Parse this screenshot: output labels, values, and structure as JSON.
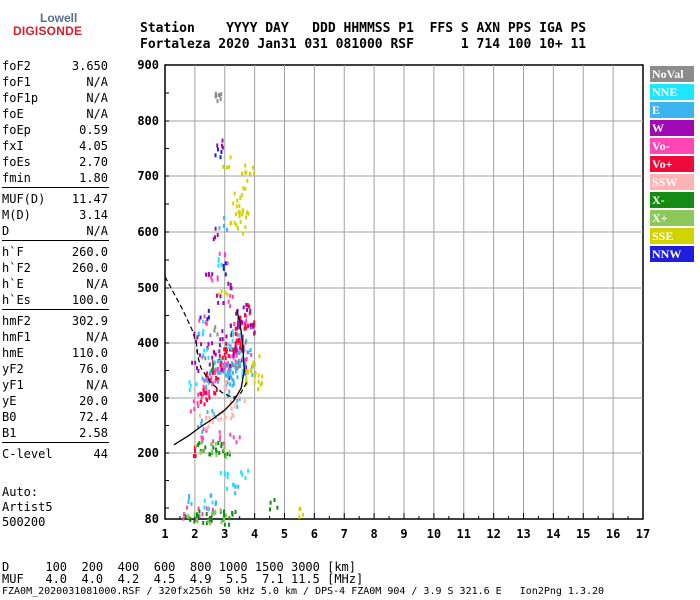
{
  "logo": {
    "line1": "Lowell",
    "line2": "DIGISONDE"
  },
  "header": {
    "row1": "Station    YYYY DAY   DDD HHMMSS P1  FFS S AXN PPS IGA PS",
    "row2": "Fortaleza 2020 Jan31 031 081000 RSF      1 714 100 10+ 11"
  },
  "params": {
    "group1": [
      {
        "name": "foF2",
        "value": "3.650"
      },
      {
        "name": "foF1",
        "value": "N/A"
      },
      {
        "name": "foF1p",
        "value": "N/A"
      },
      {
        "name": "foE",
        "value": "N/A"
      },
      {
        "name": "foEp",
        "value": "0.59"
      },
      {
        "name": "fxI",
        "value": "4.05"
      },
      {
        "name": "foEs",
        "value": "2.70"
      },
      {
        "name": "fmin",
        "value": "1.80"
      }
    ],
    "group2": [
      {
        "name": "MUF(D)",
        "value": "11.47"
      },
      {
        "name": "M(D)",
        "value": "3.14"
      },
      {
        "name": "D",
        "value": "N/A"
      }
    ],
    "group3": [
      {
        "name": "h`F",
        "value": "260.0"
      },
      {
        "name": "h`F2",
        "value": "260.0"
      },
      {
        "name": "h`E",
        "value": "N/A"
      },
      {
        "name": "h`Es",
        "value": "100.0"
      }
    ],
    "group4": [
      {
        "name": "hmF2",
        "value": "302.9"
      },
      {
        "name": "hmF1",
        "value": "N/A"
      },
      {
        "name": "hmE",
        "value": "110.0"
      },
      {
        "name": "yF2",
        "value": "76.0"
      },
      {
        "name": "yF1",
        "value": "N/A"
      },
      {
        "name": "yE",
        "value": "20.0"
      },
      {
        "name": "B0",
        "value": "72.4"
      },
      {
        "name": "B1",
        "value": "2.58"
      }
    ],
    "group5": [
      {
        "name": "C-level",
        "value": "44"
      }
    ]
  },
  "autoscaling": {
    "line1": "Auto:",
    "line2": "Artist5",
    "line3": "500200"
  },
  "legend": [
    {
      "label": "NoVal",
      "color": "#8c8c8c"
    },
    {
      "label": "NNE",
      "color": "#1ee6ff"
    },
    {
      "label": "E",
      "color": "#3cb4f0"
    },
    {
      "label": "W",
      "color": "#a00ab4"
    },
    {
      "label": "Vo-",
      "color": "#ff46b4"
    },
    {
      "label": "Vo+",
      "color": "#f00a3c"
    },
    {
      "label": "SSW",
      "color": "#ffb4b4"
    },
    {
      "label": "X-",
      "color": "#148c14"
    },
    {
      "label": "X+",
      "color": "#8cc85a"
    },
    {
      "label": "SSE",
      "color": "#d2d200"
    },
    {
      "label": "NNW",
      "color": "#1e1edc"
    }
  ],
  "muf_table": {
    "row1": "D     100  200  400  600  800 1000 1500 3000 [km]",
    "row2": "MUF   4.0  4.0  4.2  4.5  4.9  5.5  7.1 11.5 [MHz]"
  },
  "footer": "FZA0M_2020031081000.RSF / 320fx256h 50 kHz 5.0 km / DPS-4 FZA0M 904 / 3.9 S 321.6 E   Ion2Png 1.3.20",
  "chart_data": {
    "type": "scatter",
    "xlim": [
      1,
      17
    ],
    "ylim": [
      80,
      900
    ],
    "xticks": [
      1,
      2,
      3,
      4,
      5,
      6,
      7,
      8,
      9,
      10,
      11,
      12,
      13,
      14,
      15,
      16,
      17
    ],
    "yticks": [
      80,
      200,
      300,
      400,
      500,
      600,
      700,
      800,
      900
    ],
    "grid": true,
    "legend_position": "right",
    "profile_solid": [
      [
        1.3,
        215
      ],
      [
        1.8,
        232
      ],
      [
        2.2,
        248
      ],
      [
        2.6,
        262
      ],
      [
        3.0,
        278
      ],
      [
        3.3,
        295
      ],
      [
        3.55,
        318
      ],
      [
        3.65,
        350
      ],
      [
        3.6,
        400
      ],
      [
        3.5,
        440
      ],
      [
        3.4,
        460
      ]
    ],
    "trace_dashed": [
      [
        1.0,
        520
      ],
      [
        1.3,
        490
      ],
      [
        1.6,
        460
      ],
      [
        1.9,
        425
      ],
      [
        2.05,
        400
      ],
      [
        2.1,
        375
      ],
      [
        2.2,
        355
      ],
      [
        2.5,
        330
      ],
      [
        2.9,
        310
      ],
      [
        3.3,
        300
      ],
      [
        3.55,
        310
      ],
      [
        3.75,
        330
      ]
    ],
    "traces": [
      {
        "name": "Vo-",
        "color": "#ff46b4",
        "points": [
          [
            2.0,
            290
          ],
          [
            2.1,
            300
          ],
          [
            2.2,
            310
          ],
          [
            2.3,
            320
          ],
          [
            2.4,
            330
          ],
          [
            2.5,
            340
          ],
          [
            2.6,
            345
          ],
          [
            2.7,
            350
          ],
          [
            2.8,
            355
          ],
          [
            2.9,
            360
          ],
          [
            3.0,
            365
          ],
          [
            3.1,
            370
          ],
          [
            3.2,
            380
          ],
          [
            3.3,
            385
          ],
          [
            3.4,
            390
          ],
          [
            3.5,
            400
          ],
          [
            3.6,
            410
          ],
          [
            3.7,
            420
          ],
          [
            2.2,
            450
          ],
          [
            2.6,
            520
          ],
          [
            2.9,
            560
          ],
          [
            3.1,
            480
          ],
          [
            3.3,
            430
          ],
          [
            3.6,
            440
          ],
          [
            3.8,
            380
          ],
          [
            2.1,
            235
          ],
          [
            2.5,
            235
          ],
          [
            2.9,
            232
          ],
          [
            3.3,
            230
          ],
          [
            1.7,
            95
          ],
          [
            2.2,
            92
          ],
          [
            2.6,
            90
          ]
        ]
      },
      {
        "name": "Vo+",
        "color": "#f00a3c",
        "points": [
          [
            2.2,
            320
          ],
          [
            2.4,
            340
          ],
          [
            2.6,
            350
          ],
          [
            2.8,
            360
          ],
          [
            3.0,
            370
          ],
          [
            3.2,
            390
          ],
          [
            3.4,
            400
          ],
          [
            3.5,
            420
          ],
          [
            3.6,
            440
          ],
          [
            3.7,
            460
          ],
          [
            3.3,
            410
          ],
          [
            3.1,
            395
          ],
          [
            2.9,
            380
          ],
          [
            2.7,
            370
          ],
          [
            2.5,
            360
          ],
          [
            3.8,
            430
          ],
          [
            3.6,
            390
          ],
          [
            2.3,
            300
          ],
          [
            1.9,
            210
          ],
          [
            2.6,
            310
          ]
        ]
      },
      {
        "name": "W",
        "color": "#a00ab4",
        "points": [
          [
            2.1,
            410
          ],
          [
            2.3,
            390
          ],
          [
            2.5,
            375
          ],
          [
            2.7,
            395
          ],
          [
            2.9,
            420
          ],
          [
            3.1,
            430
          ],
          [
            3.3,
            440
          ],
          [
            3.5,
            450
          ],
          [
            3.7,
            470
          ],
          [
            3.9,
            430
          ],
          [
            2.4,
            530
          ],
          [
            2.8,
            480
          ],
          [
            3.2,
            500
          ],
          [
            3.4,
            390
          ],
          [
            2.0,
            360
          ],
          [
            2.6,
            600
          ],
          [
            3.0,
            350
          ],
          [
            2.8,
            760
          ],
          [
            3.6,
            360
          ]
        ]
      },
      {
        "name": "E",
        "color": "#3cb4f0",
        "points": [
          [
            3.0,
            320
          ],
          [
            3.1,
            330
          ],
          [
            3.2,
            340
          ],
          [
            3.3,
            350
          ],
          [
            3.4,
            360
          ],
          [
            3.5,
            370
          ],
          [
            3.6,
            380
          ],
          [
            2.3,
            330
          ],
          [
            2.6,
            340
          ],
          [
            2.9,
            350
          ],
          [
            3.8,
            350
          ],
          [
            2.9,
            620
          ],
          [
            3.4,
            300
          ],
          [
            2.5,
            270
          ],
          [
            2.2,
            250
          ],
          [
            3.1,
            355
          ],
          [
            3.7,
            395
          ],
          [
            1.9,
            115
          ],
          [
            2.6,
            120
          ],
          [
            3.3,
            140
          ]
        ]
      },
      {
        "name": "NNE",
        "color": "#1ee6ff",
        "points": [
          [
            2.7,
            380
          ],
          [
            3.1,
            400
          ],
          [
            3.4,
            420
          ],
          [
            2.1,
            430
          ],
          [
            2.9,
            550
          ],
          [
            3.6,
            340
          ],
          [
            2.4,
            380
          ],
          [
            1.9,
            330
          ],
          [
            3.0,
            160
          ],
          [
            3.2,
            150
          ],
          [
            3.6,
            160
          ],
          [
            2.4,
            105
          ]
        ]
      },
      {
        "name": "SSW",
        "color": "#ffb4b4",
        "points": [
          [
            2.7,
            270
          ],
          [
            2.9,
            272
          ],
          [
            3.1,
            275
          ],
          [
            2.5,
            268
          ],
          [
            3.3,
            285
          ],
          [
            2.9,
            330
          ],
          [
            3.5,
            295
          ],
          [
            2.3,
            260
          ]
        ]
      },
      {
        "name": "X-",
        "color": "#148c14",
        "points": [
          [
            1.8,
            85
          ],
          [
            2.0,
            85
          ],
          [
            2.2,
            85
          ],
          [
            2.4,
            85
          ],
          [
            2.6,
            85
          ],
          [
            2.8,
            85
          ],
          [
            3.0,
            85
          ],
          [
            3.2,
            85
          ],
          [
            2.2,
            210
          ],
          [
            2.4,
            210
          ],
          [
            2.6,
            210
          ],
          [
            2.8,
            210
          ],
          [
            3.0,
            210
          ],
          [
            2.5,
            360
          ],
          [
            4.6,
            110
          ]
        ]
      },
      {
        "name": "X+",
        "color": "#8cc85a",
        "points": [
          [
            2.1,
            212
          ],
          [
            2.7,
            212
          ],
          [
            3.1,
            208
          ],
          [
            2.5,
            88
          ],
          [
            2.9,
            88
          ],
          [
            1.9,
            88
          ]
        ]
      },
      {
        "name": "SSE",
        "color": "#d2d200",
        "points": [
          [
            3.3,
            660
          ],
          [
            3.4,
            640
          ],
          [
            3.5,
            650
          ],
          [
            3.6,
            670
          ],
          [
            3.7,
            700
          ],
          [
            3.8,
            720
          ],
          [
            3.6,
            630
          ],
          [
            3.5,
            610
          ],
          [
            3.2,
            620
          ],
          [
            3.9,
            350
          ],
          [
            4.0,
            370
          ],
          [
            4.1,
            340
          ],
          [
            4.2,
            330
          ],
          [
            3.7,
            340
          ],
          [
            2.9,
            490
          ],
          [
            3.0,
            730
          ],
          [
            5.5,
            95
          ]
        ]
      },
      {
        "name": "NNW",
        "color": "#1e1edc",
        "points": [
          [
            2.8,
            750
          ],
          [
            2.9,
            540
          ],
          [
            2.3,
            455
          ]
        ]
      },
      {
        "name": "NoVal",
        "color": "#8c8c8c",
        "points": [
          [
            2.2,
            380
          ],
          [
            2.6,
            420
          ],
          [
            3.3,
            360
          ],
          [
            2.8,
            860
          ],
          [
            2.7,
            840
          ]
        ]
      }
    ]
  }
}
